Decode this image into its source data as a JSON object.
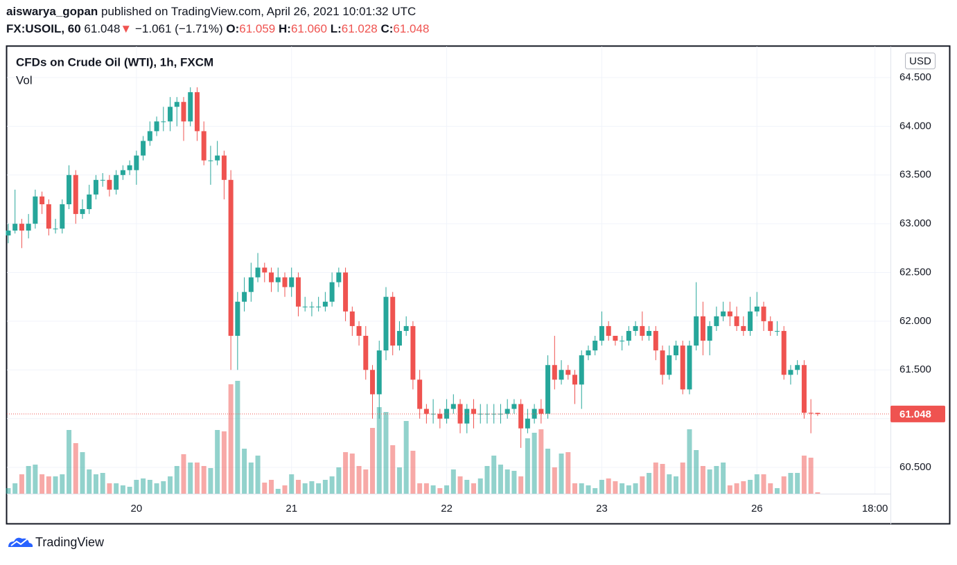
{
  "header": {
    "user": "aiswarya_gopan",
    "published": "published on TradingView.com, April 26, 2021 10:01:32 UTC",
    "symbol": "FX:USOIL, 60",
    "last": "61.048",
    "arrow": "▼",
    "change": "−1.061 (−1.71%)",
    "o_label": "O:",
    "o": "61.059",
    "h_label": "H:",
    "h": "61.060",
    "l_label": "L:",
    "l": "61.028",
    "c_label": "C:",
    "c": "61.048"
  },
  "footer": {
    "brand": "TradingView"
  },
  "chart_data": {
    "type": "candlestick",
    "title": "CFDs on Crude Oil (WTI), 1h, FXCM",
    "volume_label": "Vol",
    "currency": "USD",
    "up_color": "#26a69a",
    "down_color": "#ef5350",
    "grid": true,
    "xlim": [
      -0.2,
      130.8
    ],
    "xticks": [
      {
        "value": 19,
        "label": "20"
      },
      {
        "value": 42,
        "label": "21"
      },
      {
        "value": 65,
        "label": "22"
      },
      {
        "value": 88,
        "label": "23"
      },
      {
        "value": 111,
        "label": "26"
      },
      {
        "value": 128.5,
        "label": "18:00"
      }
    ],
    "ylim": [
      60.23,
      64.82
    ],
    "yticks": [
      {
        "value": 60.5,
        "label": "60.500"
      },
      {
        "value": 61,
        "label": "61.000"
      },
      {
        "value": 61.5,
        "label": "61.500"
      },
      {
        "value": 62,
        "label": "62.000"
      },
      {
        "value": 62.5,
        "label": "62.500"
      },
      {
        "value": 63,
        "label": "63.000"
      },
      {
        "value": 63.5,
        "label": "63.500"
      },
      {
        "value": 64,
        "label": "64.000"
      },
      {
        "value": 64.5,
        "label": "64.500"
      }
    ],
    "open": [
      62.88,
      62.93,
      63.0,
      62.93,
      63.0,
      63.28,
      63.2,
      62.95,
      62.95,
      63.2,
      63.5,
      63.1,
      63.15,
      63.3,
      63.45,
      63.45,
      63.35,
      63.5,
      63.55,
      63.55,
      63.7,
      63.85,
      63.95,
      64.05,
      64.05,
      64.2,
      64.25,
      64.05,
      64.35,
      63.95,
      63.65,
      63.65,
      63.7,
      63.45,
      61.85,
      62.2,
      62.3,
      62.45,
      62.55,
      62.5,
      62.4,
      62.45,
      62.35,
      62.45,
      62.15,
      62.15,
      62.15,
      62.15,
      62.2,
      62.4,
      62.5,
      62.1,
      61.95,
      61.85,
      61.5,
      61.25,
      61.7,
      62.25,
      61.75,
      61.9,
      61.95,
      61.4,
      61.1,
      61.05,
      61.05,
      61.0,
      61.1,
      61.15,
      60.95,
      61.1,
      61.05,
      61.05,
      61.05,
      61.05,
      61.05,
      61.1,
      61.15,
      60.9,
      61.0,
      61.1,
      61.05,
      61.55,
      61.4,
      61.5,
      61.45,
      61.35,
      61.65,
      61.7,
      61.8,
      61.95,
      61.85,
      61.8,
      61.8,
      61.9,
      61.95,
      61.85,
      61.9,
      61.7,
      61.45,
      61.65,
      61.75,
      61.3,
      61.75,
      62.05,
      61.8,
      61.95,
      62.05,
      62.1,
      62.05,
      61.95,
      61.9,
      62.1,
      62.15,
      62.0,
      61.9,
      61.9,
      61.45,
      61.5,
      61.55,
      61.06,
      61.059
    ],
    "high": [
      63.0,
      63.35,
      63.05,
      63.1,
      63.35,
      63.33,
      63.25,
      63.05,
      63.25,
      63.6,
      63.55,
      63.25,
      63.4,
      63.5,
      63.52,
      63.5,
      63.55,
      63.6,
      63.65,
      63.75,
      63.9,
      64.05,
      64.1,
      64.2,
      64.3,
      64.3,
      64.3,
      64.4,
      64.4,
      64.05,
      63.8,
      63.85,
      63.75,
      63.55,
      62.3,
      62.45,
      62.6,
      62.7,
      62.6,
      62.55,
      62.55,
      62.5,
      62.55,
      62.5,
      62.25,
      62.2,
      62.25,
      62.3,
      62.5,
      62.55,
      62.55,
      62.15,
      62.0,
      61.95,
      61.55,
      61.8,
      62.35,
      62.3,
      62.0,
      62.05,
      62.0,
      61.5,
      61.15,
      61.2,
      61.1,
      61.2,
      61.25,
      61.2,
      61.15,
      61.2,
      61.15,
      61.15,
      61.15,
      61.15,
      61.2,
      61.2,
      61.2,
      61.1,
      61.15,
      61.2,
      61.65,
      61.85,
      61.6,
      61.55,
      61.5,
      61.7,
      61.75,
      61.85,
      62.1,
      62.0,
      61.85,
      61.85,
      61.95,
      62.0,
      62.1,
      61.95,
      61.95,
      61.75,
      61.75,
      61.8,
      61.8,
      61.8,
      62.4,
      62.2,
      62.0,
      62.15,
      62.2,
      62.2,
      62.15,
      62.05,
      62.25,
      62.3,
      62.2,
      62.05,
      62.0,
      61.95,
      61.55,
      61.6,
      61.6,
      61.2,
      61.06
    ],
    "low": [
      62.8,
      62.9,
      62.75,
      62.85,
      62.95,
      63.1,
      62.88,
      62.9,
      62.9,
      63.15,
      63.0,
      63.05,
      63.1,
      63.25,
      63.38,
      63.28,
      63.3,
      63.45,
      63.5,
      63.4,
      63.65,
      63.8,
      63.9,
      63.95,
      63.95,
      64.0,
      63.85,
      64.0,
      63.85,
      63.6,
      63.4,
      63.6,
      63.25,
      61.5,
      61.5,
      62.1,
      62.2,
      62.4,
      62.4,
      62.3,
      62.3,
      62.25,
      62.25,
      62.05,
      62.1,
      62.05,
      62.1,
      62.1,
      62.15,
      62.35,
      62.0,
      61.85,
      61.75,
      61.4,
      61.0,
      61.0,
      61.6,
      61.65,
      61.7,
      61.85,
      61.3,
      61.0,
      60.95,
      60.95,
      60.9,
      60.95,
      61.05,
      60.85,
      60.85,
      60.9,
      60.95,
      60.95,
      60.95,
      60.95,
      61.0,
      61.05,
      60.7,
      60.85,
      60.95,
      60.95,
      61.0,
      61.3,
      61.35,
      61.4,
      61.15,
      61.1,
      61.6,
      61.65,
      61.75,
      61.8,
      61.75,
      61.7,
      61.75,
      61.85,
      61.8,
      61.8,
      61.6,
      61.35,
      61.4,
      61.6,
      61.25,
      61.25,
      61.7,
      61.65,
      61.65,
      61.9,
      62.0,
      61.95,
      61.9,
      61.85,
      61.85,
      62.05,
      61.9,
      61.85,
      61.85,
      61.4,
      61.35,
      61.45,
      61.0,
      60.85,
      61.028
    ],
    "close": [
      62.93,
      63.0,
      62.93,
      63.0,
      63.28,
      63.2,
      62.95,
      62.95,
      63.2,
      63.5,
      63.1,
      63.15,
      63.3,
      63.45,
      63.45,
      63.35,
      63.5,
      63.55,
      63.6,
      63.7,
      63.85,
      63.95,
      64.05,
      64.05,
      64.2,
      64.25,
      64.05,
      64.35,
      63.95,
      63.65,
      63.65,
      63.7,
      63.45,
      61.85,
      62.2,
      62.3,
      62.45,
      62.55,
      62.5,
      62.4,
      62.45,
      62.35,
      62.45,
      62.15,
      62.15,
      62.15,
      62.15,
      62.2,
      62.4,
      62.5,
      62.1,
      61.95,
      61.85,
      61.5,
      61.25,
      61.7,
      62.25,
      61.75,
      61.9,
      61.95,
      61.4,
      61.1,
      61.05,
      61.05,
      61.0,
      61.1,
      61.15,
      60.95,
      61.1,
      61.05,
      61.05,
      61.05,
      61.05,
      61.05,
      61.1,
      61.15,
      60.9,
      61.0,
      61.1,
      61.05,
      61.55,
      61.4,
      61.5,
      61.45,
      61.35,
      61.65,
      61.7,
      61.8,
      61.95,
      61.85,
      61.8,
      61.8,
      61.9,
      61.95,
      61.85,
      61.9,
      61.7,
      61.45,
      61.65,
      61.75,
      61.3,
      61.75,
      62.05,
      61.8,
      61.95,
      62.05,
      62.1,
      62.05,
      61.95,
      61.9,
      62.1,
      62.15,
      62.0,
      61.9,
      61.9,
      61.45,
      61.5,
      61.55,
      61.06,
      61.059,
      61.048
    ],
    "volume": [
      8,
      15,
      28,
      40,
      42,
      28,
      25,
      25,
      28,
      92,
      73,
      60,
      35,
      28,
      30,
      15,
      15,
      12,
      10,
      20,
      22,
      20,
      15,
      18,
      25,
      40,
      57,
      45,
      45,
      40,
      37,
      92,
      90,
      158,
      163,
      65,
      45,
      55,
      16,
      20,
      7,
      12,
      28,
      20,
      15,
      18,
      15,
      20,
      25,
      38,
      60,
      58,
      40,
      35,
      95,
      125,
      118,
      70,
      38,
      105,
      62,
      15,
      15,
      12,
      8,
      12,
      35,
      25,
      20,
      15,
      22,
      40,
      55,
      42,
      35,
      33,
      25,
      80,
      88,
      93,
      65,
      38,
      58,
      60,
      15,
      15,
      12,
      8,
      20,
      22,
      18,
      15,
      12,
      15,
      25,
      30,
      45,
      43,
      28,
      25,
      45,
      93,
      63,
      40,
      35,
      40,
      45,
      12,
      15,
      18,
      20,
      28,
      28,
      15,
      8,
      25,
      30,
      30,
      55,
      52,
      2
    ]
  }
}
